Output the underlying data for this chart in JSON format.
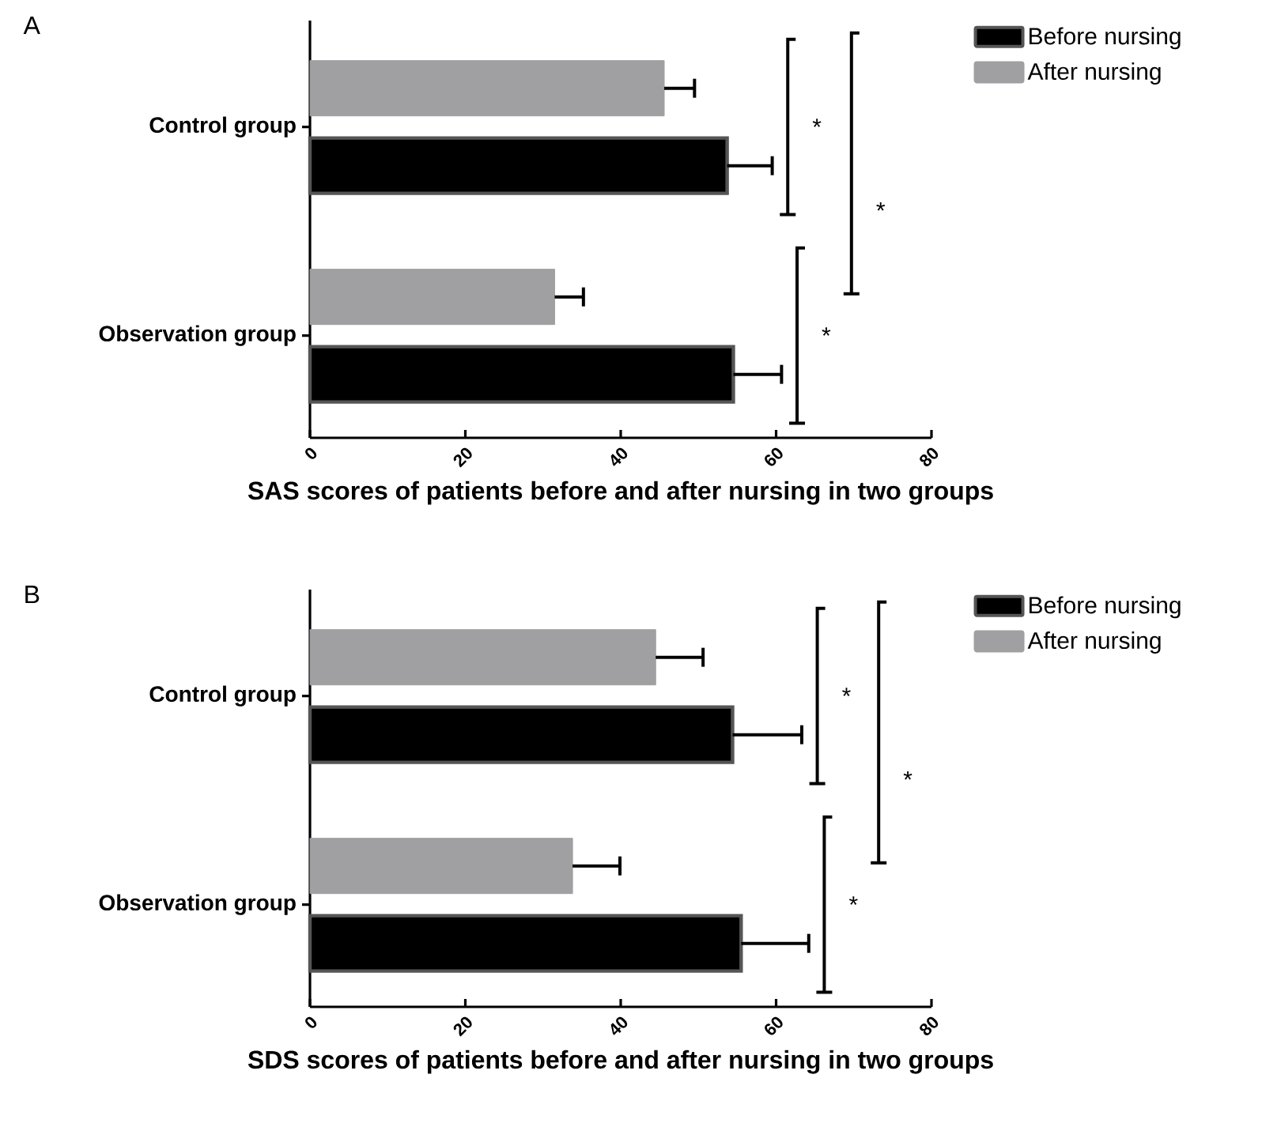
{
  "chart_data": [
    {
      "type": "bar",
      "orientation": "horizontal",
      "title": "A",
      "xlabel": "SAS scores of patients before and after nursing in two groups",
      "categories": [
        "Control group",
        "Observation group"
      ],
      "series": [
        {
          "name": "Before nursing",
          "color": "#000000",
          "values": [
            53.7,
            54.5
          ],
          "errors": [
            [
              53.7,
              59.5
            ],
            [
              54.5,
              60.7
            ]
          ]
        },
        {
          "name": "After nursing",
          "color": "#a0a0a2",
          "values": [
            45.6,
            31.5
          ],
          "errors": [
            [
              45.6,
              49.5
            ],
            [
              31.5,
              35.2
            ]
          ]
        }
      ],
      "xlim": [
        0,
        80
      ],
      "xticks": [
        0,
        20,
        40,
        60,
        80
      ],
      "legend": "top right",
      "annotations": [
        "*",
        "*",
        "*"
      ]
    },
    {
      "type": "bar",
      "orientation": "horizontal",
      "title": "B",
      "xlabel": "SDS scores of patients before and after nursing in two groups",
      "categories": [
        "Control group",
        "Observation group"
      ],
      "series": [
        {
          "name": "Before nursing",
          "color": "#000000",
          "values": [
            54.4,
            55.5
          ],
          "errors": [
            [
              54.4,
              63.3
            ],
            [
              55.5,
              64.2
            ]
          ]
        },
        {
          "name": "After nursing",
          "color": "#a0a0a2",
          "values": [
            44.5,
            33.8
          ],
          "errors": [
            [
              44.5,
              50.6
            ],
            [
              33.8,
              39.9
            ]
          ]
        }
      ],
      "xlim": [
        0,
        80
      ],
      "xticks": [
        0,
        20,
        40,
        60,
        80
      ],
      "legend": "top right",
      "annotations": [
        "*",
        "*",
        "*"
      ]
    }
  ]
}
